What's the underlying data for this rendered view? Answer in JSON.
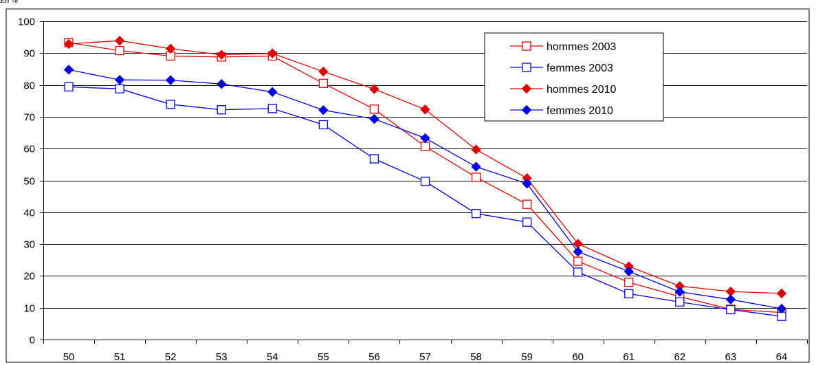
{
  "chart_data": {
    "type": "line",
    "ylabel": "En %",
    "ylim": [
      0,
      100
    ],
    "yticks": [
      "0",
      "10",
      "20",
      "30",
      "40",
      "50",
      "60",
      "70",
      "80",
      "90",
      "100"
    ],
    "categories": [
      "50",
      "51",
      "52",
      "53",
      "54",
      "55",
      "56",
      "57",
      "58",
      "59",
      "60",
      "61",
      "62",
      "63",
      "64"
    ],
    "grid": true,
    "legend_position": "top-right",
    "series": [
      {
        "name": "hommes 2003",
        "color": "#e00000",
        "marker": "open-square",
        "values": [
          93.3,
          90.8,
          89.1,
          88.8,
          89.1,
          80.5,
          72.4,
          60.7,
          51.0,
          42.5,
          24.6,
          18.0,
          13.5,
          9.5,
          8.5
        ]
      },
      {
        "name": "femmes 2003",
        "color": "#0000e0",
        "marker": "open-square",
        "values": [
          79.4,
          78.8,
          73.9,
          72.2,
          72.6,
          67.5,
          56.8,
          49.7,
          39.6,
          36.9,
          21.2,
          14.4,
          11.8,
          9.4,
          7.3
        ]
      },
      {
        "name": "hommes 2010",
        "color": "#e00000",
        "marker": "filled-diamond",
        "values": [
          92.9,
          93.9,
          91.4,
          89.5,
          89.9,
          84.2,
          78.7,
          72.3,
          59.7,
          50.7,
          30.1,
          23.0,
          16.8,
          15.1,
          14.5
        ]
      },
      {
        "name": "femmes 2010",
        "color": "#0000e0",
        "marker": "filled-diamond",
        "values": [
          84.8,
          81.6,
          81.5,
          80.3,
          77.8,
          72.1,
          69.3,
          63.3,
          54.3,
          49.0,
          27.6,
          21.4,
          15.0,
          12.6,
          9.7
        ]
      }
    ]
  }
}
